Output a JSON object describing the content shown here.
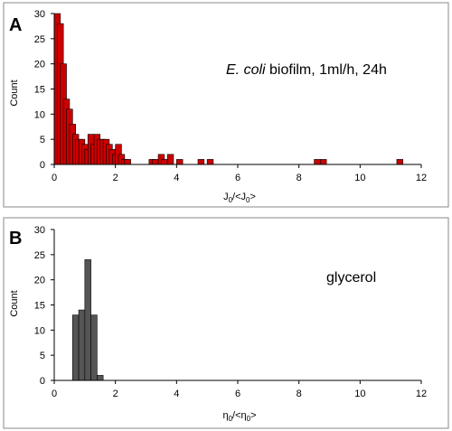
{
  "chart_data": [
    {
      "panel_label": "A",
      "type": "bar",
      "subtype": "histogram",
      "annotation": {
        "italic": "E. coli",
        "rest": " biofilm, 1ml/h, 24h"
      },
      "xlabel": {
        "main": "J",
        "sub": "0",
        "mid": "/<J",
        "sub2": "0",
        "end": ">"
      },
      "ylabel": "Count",
      "xlim": [
        0,
        12
      ],
      "ylim": [
        0,
        30
      ],
      "xticks": [
        0,
        2,
        4,
        6,
        8,
        10,
        12
      ],
      "yticks": [
        0,
        5,
        10,
        15,
        20,
        25,
        30
      ],
      "bin_width": 0.2,
      "bar_color": "#cc0000",
      "bin_starts": [
        0.0,
        0.1,
        0.2,
        0.3,
        0.4,
        0.5,
        0.6,
        0.7,
        0.8,
        0.9,
        1.0,
        1.1,
        1.2,
        1.3,
        1.4,
        1.5,
        1.6,
        1.7,
        1.8,
        1.9,
        2.0,
        2.1,
        2.2,
        2.3,
        3.1,
        3.2,
        3.4,
        3.5,
        3.7,
        4.0,
        4.7,
        5.0,
        8.5,
        8.7,
        11.2
      ],
      "values": [
        30,
        28,
        20,
        13,
        11,
        8,
        6,
        5,
        5,
        4,
        3,
        6,
        4,
        6,
        5,
        5,
        5,
        4,
        3,
        2,
        4,
        2,
        1,
        1,
        1,
        1,
        2,
        1,
        2,
        1,
        1,
        1,
        1,
        1,
        1
      ]
    },
    {
      "panel_label": "B",
      "type": "bar",
      "subtype": "histogram",
      "annotation": {
        "italic": "",
        "rest": "glycerol"
      },
      "xlabel": {
        "main": "η",
        "sub": "0",
        "mid": "/<η",
        "sub2": "0",
        "end": ">"
      },
      "ylabel": "Count",
      "xlim": [
        0,
        12
      ],
      "ylim": [
        0,
        30
      ],
      "xticks": [
        0,
        2,
        4,
        6,
        8,
        10,
        12
      ],
      "yticks": [
        0,
        5,
        10,
        15,
        20,
        25,
        30
      ],
      "bin_width": 0.2,
      "bar_color": "#555555",
      "bin_starts": [
        0.6,
        0.8,
        1.0,
        1.2,
        1.4
      ],
      "values": [
        13,
        14,
        24,
        13,
        1
      ]
    }
  ]
}
